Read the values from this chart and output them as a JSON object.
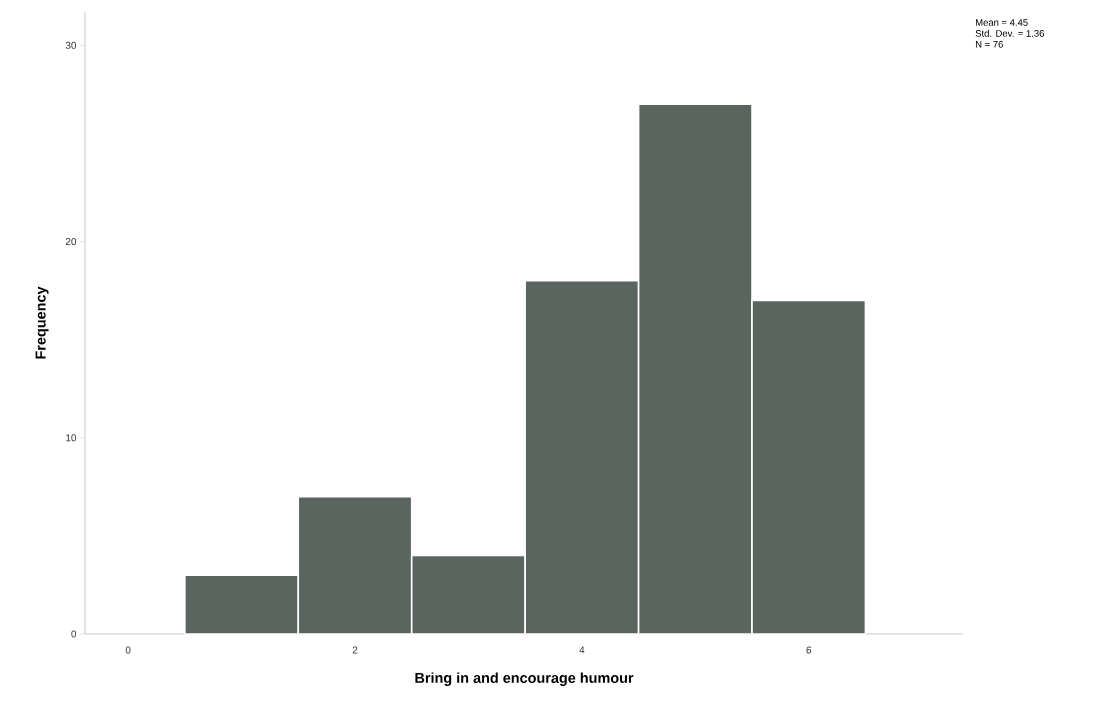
{
  "chart_data": {
    "type": "histogram",
    "xlabel": "Bring in and encourage humour",
    "ylabel": "Frequency",
    "bins": [
      0.5,
      1.5,
      2.5,
      3.5,
      4.5,
      5.5,
      6.5
    ],
    "values": [
      3,
      7,
      4,
      18,
      27,
      17
    ],
    "color": "#5b6560",
    "xlim": [
      -0.38,
      7.36
    ],
    "ylim": [
      0,
      31.7
    ],
    "xticks": [
      0,
      2,
      4,
      6
    ],
    "yticks": [
      0,
      10,
      20,
      30
    ],
    "grid": false,
    "annotations": [
      "Mean = 4.45",
      "Std. Dev. = 1.36",
      "N = 76"
    ]
  }
}
